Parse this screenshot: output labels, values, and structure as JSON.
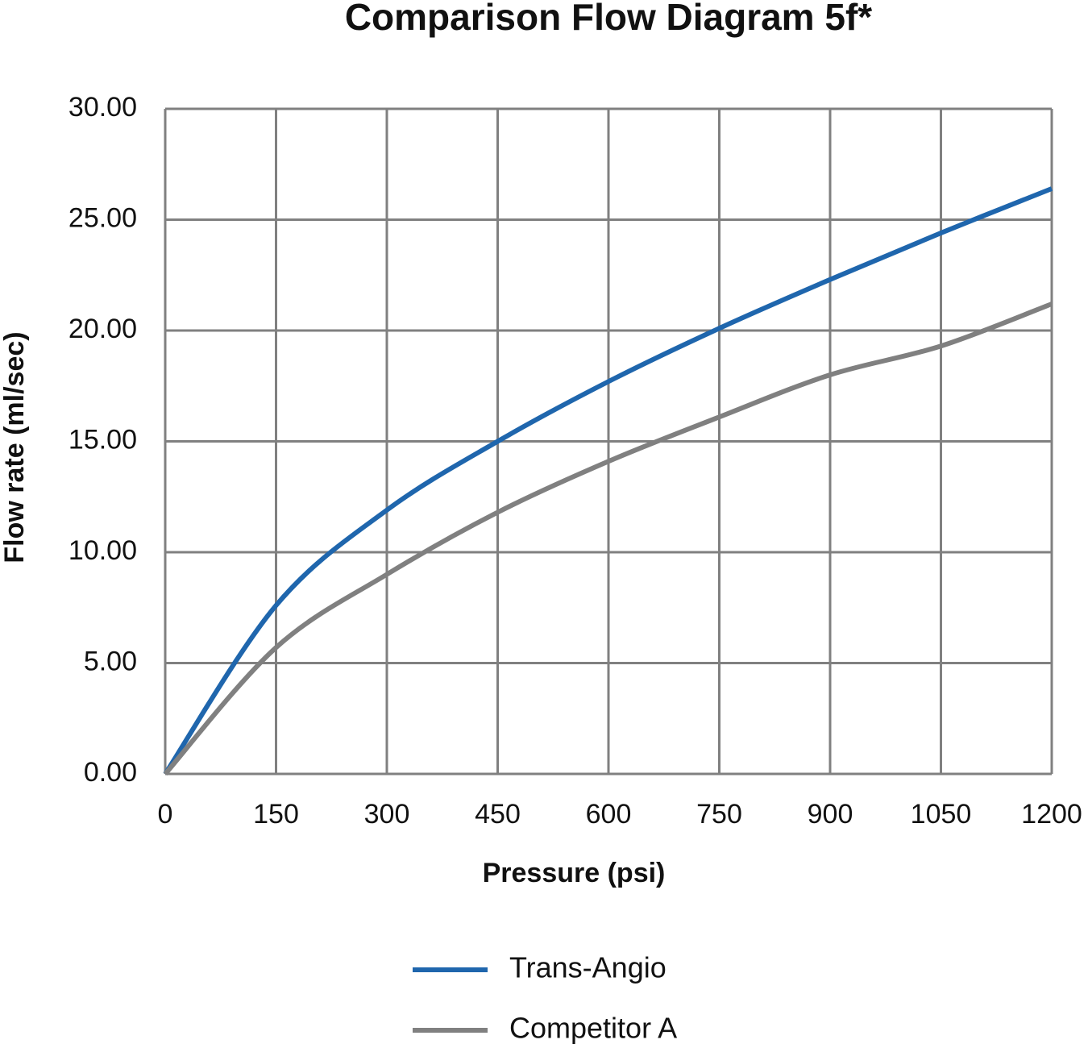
{
  "chart_data": {
    "type": "line",
    "title": "Comparison Flow Diagram 5f*",
    "x_label": "Pressure (psi)",
    "y_label": "Flow rate (ml/sec)",
    "x": [
      0,
      150,
      300,
      450,
      600,
      750,
      900,
      1050,
      1200
    ],
    "series": [
      {
        "name": "Trans-Angio",
        "color": "#1f66ad",
        "values": [
          0,
          7.6,
          11.9,
          15.0,
          17.7,
          20.1,
          22.3,
          24.4,
          26.4
        ]
      },
      {
        "name": "Competitor A",
        "color": "#808080",
        "values": [
          0,
          5.7,
          9.0,
          11.8,
          14.1,
          16.1,
          18.0,
          19.3,
          21.2
        ]
      }
    ],
    "xlim": [
      0,
      1200
    ],
    "xticks": [
      0,
      150,
      300,
      450,
      600,
      750,
      900,
      1050,
      1200
    ],
    "ylim": [
      0,
      30
    ],
    "yticks": [
      {
        "value": 0,
        "label": "0.00"
      },
      {
        "value": 5,
        "label": "5.00"
      },
      {
        "value": 10,
        "label": "10.00"
      },
      {
        "value": 15,
        "label": "15.00"
      },
      {
        "value": 20,
        "label": "20.00"
      },
      {
        "value": 25,
        "label": "25.00"
      },
      {
        "value": 30,
        "label": "30.00"
      }
    ],
    "grid": true,
    "grid_color": "#808080",
    "legend": "bottom"
  }
}
